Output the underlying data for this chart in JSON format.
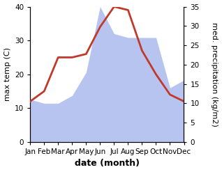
{
  "months": [
    "Jan",
    "Feb",
    "Mar",
    "Apr",
    "May",
    "Jun",
    "Jul",
    "Aug",
    "Sep",
    "Oct",
    "Nov",
    "Dec"
  ],
  "max_temp": [
    12,
    15,
    25,
    25,
    26,
    34,
    40,
    39,
    27,
    20,
    14,
    12
  ],
  "precipitation": [
    11,
    10,
    10,
    12,
    18,
    35,
    28,
    27,
    27,
    27,
    14,
    16
  ],
  "temp_color": "#c0392b",
  "precip_color": "#b8c4f0",
  "temp_ylim": [
    0,
    40
  ],
  "precip_ylim": [
    0,
    35
  ],
  "temp_yticks": [
    0,
    10,
    20,
    30,
    40
  ],
  "precip_yticks": [
    0,
    5,
    10,
    15,
    20,
    25,
    30,
    35
  ],
  "xlabel": "date (month)",
  "ylabel_left": "max temp (C)",
  "ylabel_right": "med. precipitation (kg/m2)",
  "xlabel_fontsize": 9,
  "ylabel_fontsize": 8,
  "tick_fontsize": 7.5,
  "line_width": 2.0,
  "background_color": "#ffffff"
}
